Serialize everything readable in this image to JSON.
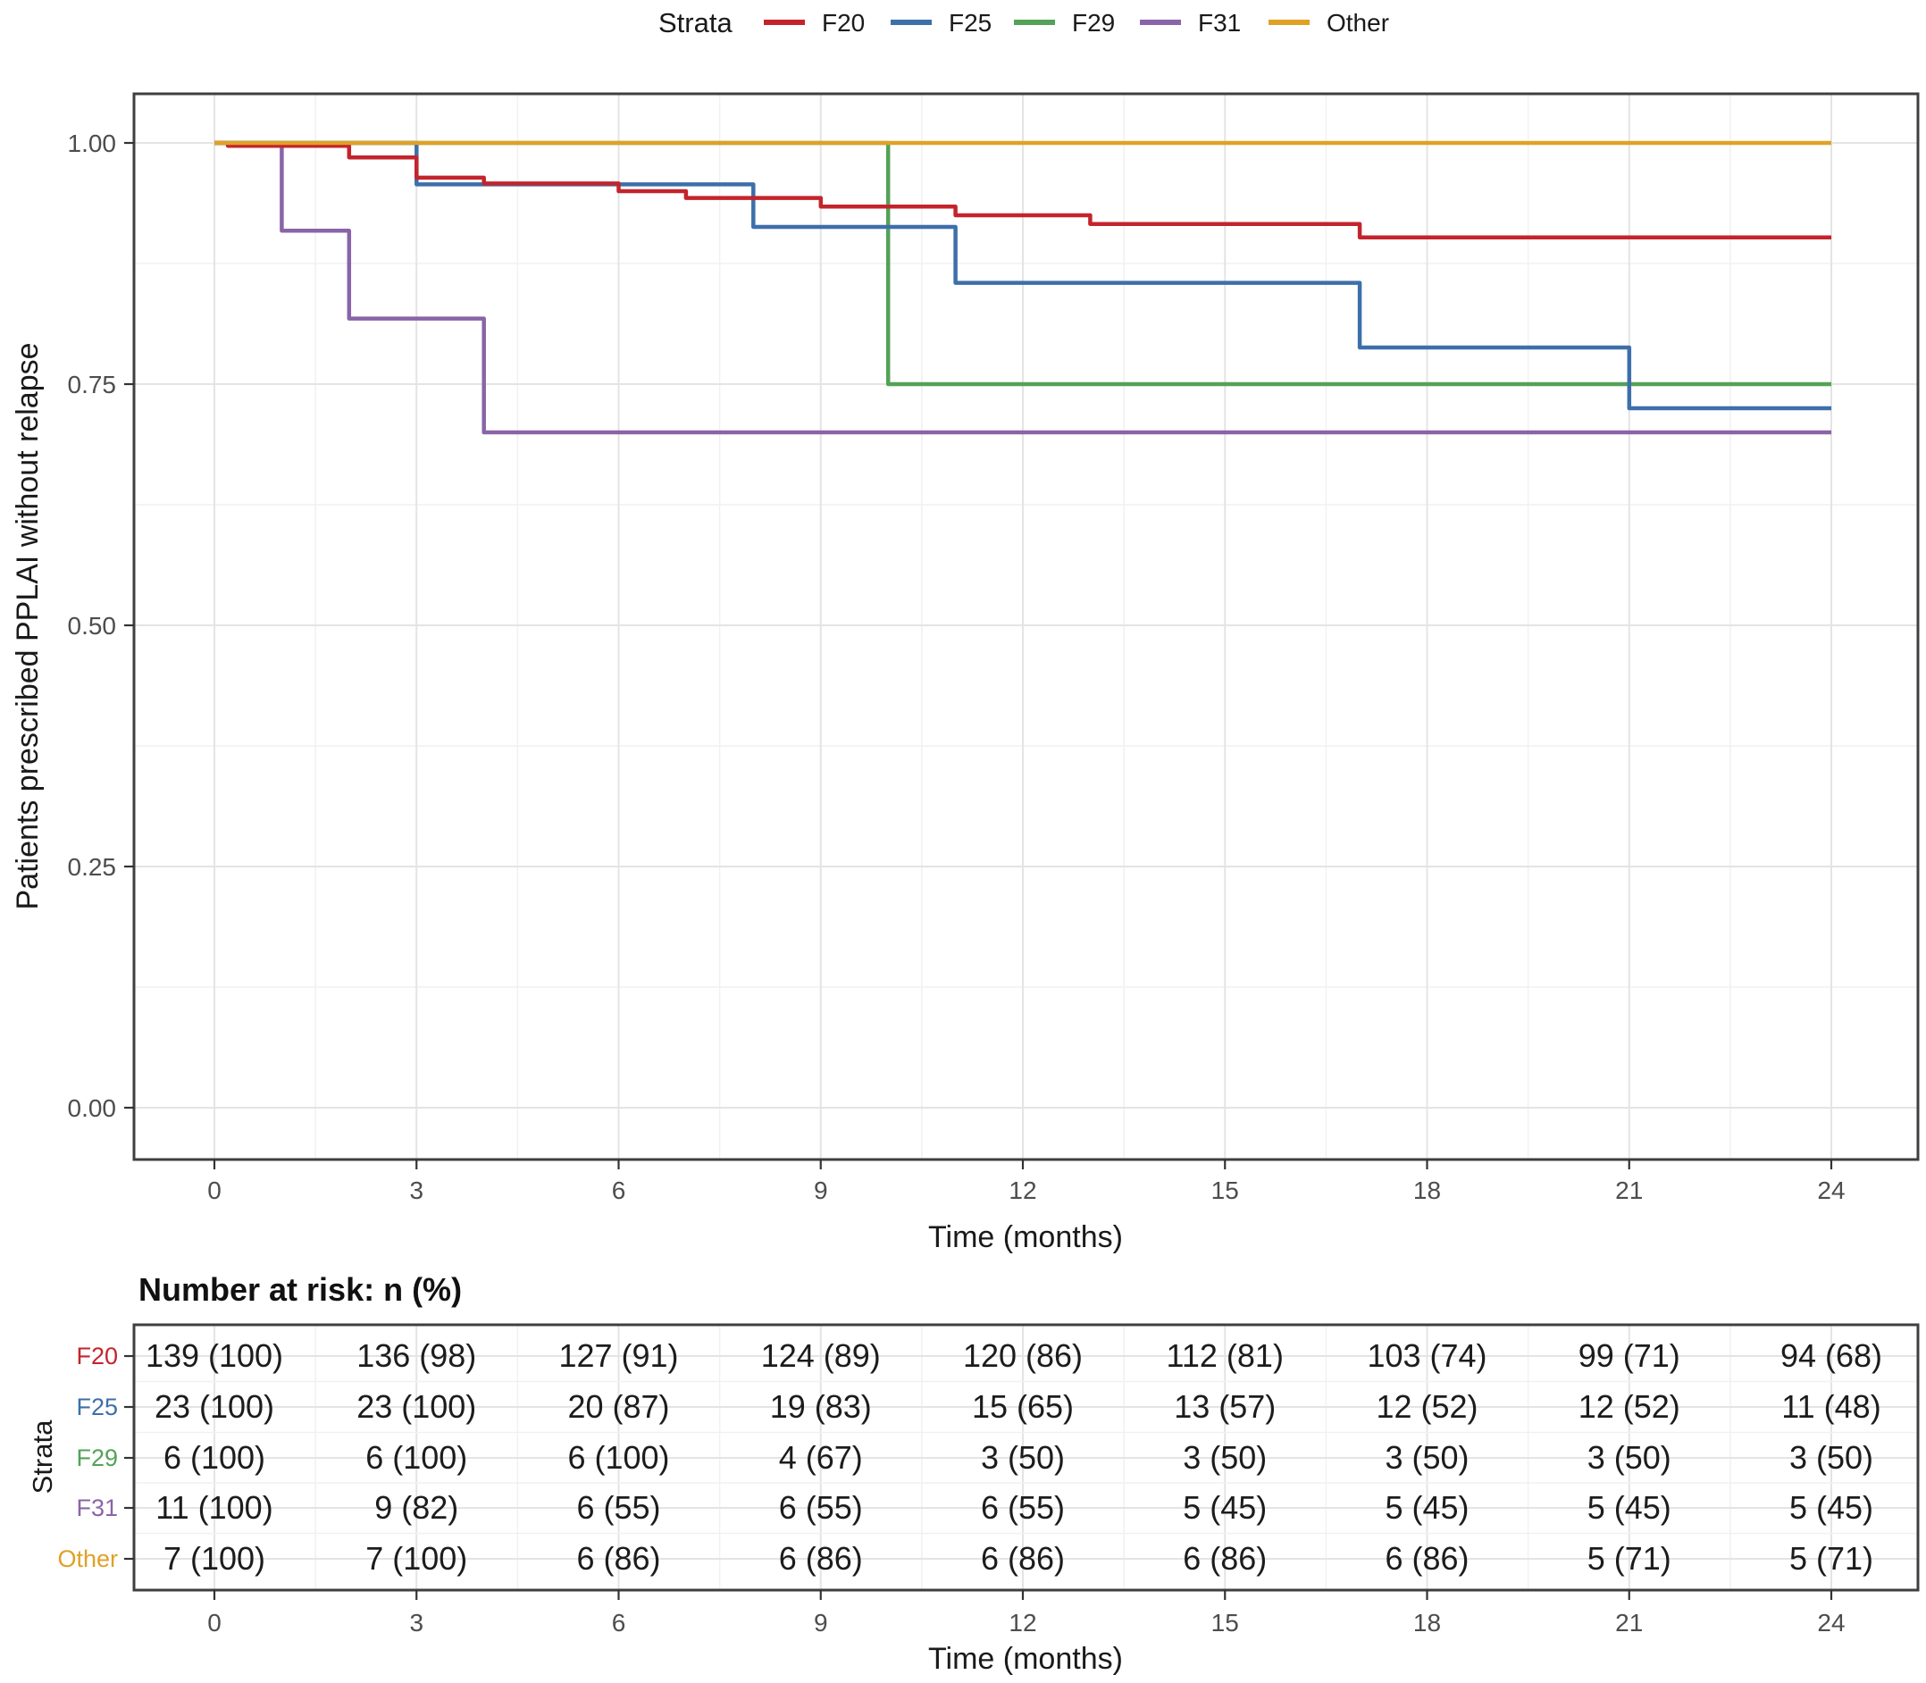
{
  "chart_data": {
    "type": "line",
    "subtype": "kaplan-meier-step",
    "title": "",
    "xlabel": "Time (months)",
    "ylabel": "Patients prescribed PPLAI without relapse",
    "xlim": [
      0,
      24
    ],
    "ylim": [
      0.0,
      1.0
    ],
    "x_ticks": [
      0,
      3,
      6,
      9,
      12,
      15,
      18,
      21,
      24
    ],
    "y_ticks": [
      {
        "v": 1.0,
        "label": "1.00"
      },
      {
        "v": 0.75,
        "label": "0.75"
      },
      {
        "v": 0.5,
        "label": "0.50"
      },
      {
        "v": 0.25,
        "label": "0.25"
      },
      {
        "v": 0.0,
        "label": "0.00"
      }
    ],
    "grid": true,
    "legend": {
      "title": "Strata",
      "position": "top"
    },
    "series": [
      {
        "name": "F20",
        "color": "#C3242C",
        "steps": [
          [
            0,
            1.0
          ],
          [
            0.2,
            0.997
          ],
          [
            2,
            0.985
          ],
          [
            3,
            0.964
          ],
          [
            4,
            0.958
          ],
          [
            6,
            0.95
          ],
          [
            7,
            0.943
          ],
          [
            9,
            0.934
          ],
          [
            11,
            0.925
          ],
          [
            13,
            0.916
          ],
          [
            17,
            0.902
          ]
        ],
        "end": 24
      },
      {
        "name": "F25",
        "color": "#3D6FAA",
        "steps": [
          [
            0,
            1.0
          ],
          [
            3,
            0.957
          ],
          [
            8,
            0.913
          ],
          [
            11,
            0.855
          ],
          [
            17,
            0.788
          ],
          [
            21,
            0.725
          ]
        ],
        "end": 24
      },
      {
        "name": "F29",
        "color": "#53A257",
        "steps": [
          [
            0,
            1.0
          ],
          [
            10,
            0.75
          ]
        ],
        "end": 24
      },
      {
        "name": "F31",
        "color": "#8964A8",
        "steps": [
          [
            0,
            1.0
          ],
          [
            1,
            0.909
          ],
          [
            2,
            0.818
          ],
          [
            4,
            0.7
          ]
        ],
        "end": 24
      },
      {
        "name": "Other",
        "color": "#DFA126",
        "steps": [
          [
            0,
            1.0
          ]
        ],
        "end": 24
      }
    ],
    "draw_order": [
      "F31",
      "F29",
      "F25",
      "F20",
      "Other"
    ],
    "risk_table": {
      "title": "Number at risk: n (%)",
      "ylabel": "Strata",
      "xlabel": "Time (months)",
      "time_points": [
        0,
        3,
        6,
        9,
        12,
        15,
        18,
        21,
        24
      ],
      "rows": [
        {
          "name": "F20",
          "color": "#C3242C",
          "values": [
            "139 (100)",
            "136 (98)",
            "127 (91)",
            "124 (89)",
            "120 (86)",
            "112 (81)",
            "103 (74)",
            "99 (71)",
            "94 (68)"
          ]
        },
        {
          "name": "F25",
          "color": "#3D6FAA",
          "values": [
            "23 (100)",
            "23 (100)",
            "20 (87)",
            "19 (83)",
            "15 (65)",
            "13 (57)",
            "12 (52)",
            "12 (52)",
            "11 (48)"
          ]
        },
        {
          "name": "F29",
          "color": "#53A257",
          "values": [
            "6 (100)",
            "6 (100)",
            "6 (100)",
            "4 (67)",
            "3 (50)",
            "3 (50)",
            "3 (50)",
            "3 (50)",
            "3 (50)"
          ]
        },
        {
          "name": "F31",
          "color": "#8964A8",
          "values": [
            "11 (100)",
            "9 (82)",
            "6 (55)",
            "6 (55)",
            "6 (55)",
            "5 (45)",
            "5 (45)",
            "5 (45)",
            "5 (45)"
          ]
        },
        {
          "name": "Other",
          "color": "#DFA126",
          "values": [
            "7 (100)",
            "7 (100)",
            "6 (86)",
            "6 (86)",
            "6 (86)",
            "6 (86)",
            "6 (86)",
            "5 (71)",
            "5 (71)"
          ]
        }
      ]
    }
  }
}
